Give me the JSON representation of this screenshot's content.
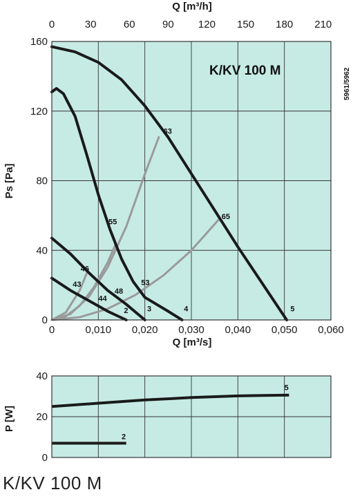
{
  "caption": "K/KV 100 M",
  "code": "5961/5962",
  "chart_data": [
    {
      "type": "line",
      "title": "K/KV 100 M",
      "xlabel": "Q [m³/s]",
      "x2label": "Q [m³/h]",
      "ylabel": "Ps [Pa]",
      "xlim": [
        0,
        0.06
      ],
      "x2lim": [
        0,
        216
      ],
      "ylim": [
        0,
        160
      ],
      "xticks": [
        "0",
        "0,010",
        "0,020",
        "0,030",
        "0,040",
        "0,050",
        "0,060"
      ],
      "x2ticks": [
        "0",
        "30",
        "60",
        "90",
        "120",
        "150",
        "180",
        "210"
      ],
      "yticks": [
        "0",
        "40",
        "80",
        "120",
        "160"
      ],
      "grid": true,
      "fan_curves": [
        {
          "name": "5",
          "label_at": [
            0.0513,
            5
          ],
          "points": [
            [
              0,
              157
            ],
            [
              0.005,
              154
            ],
            [
              0.01,
              148
            ],
            [
              0.015,
              138
            ],
            [
              0.02,
              123
            ],
            [
              0.025,
              105
            ],
            [
              0.03,
              84
            ],
            [
              0.035,
              63
            ],
            [
              0.04,
              42
            ],
            [
              0.045,
              22
            ],
            [
              0.0505,
              0
            ]
          ]
        },
        {
          "name": "4",
          "label_at": [
            0.0284,
            5
          ],
          "points": [
            [
              0,
              131
            ],
            [
              0.001,
              133
            ],
            [
              0.0025,
              130
            ],
            [
              0.005,
              117
            ],
            [
              0.0075,
              95
            ],
            [
              0.01,
              72
            ],
            [
              0.0125,
              52
            ],
            [
              0.015,
              35
            ],
            [
              0.0175,
              22
            ],
            [
              0.02,
              13
            ],
            [
              0.025,
              5
            ],
            [
              0.028,
              0
            ]
          ]
        },
        {
          "name": "3",
          "label_at": [
            0.0205,
            5
          ],
          "points": [
            [
              0,
              47
            ],
            [
              0.004,
              38
            ],
            [
              0.008,
              27
            ],
            [
              0.012,
              17
            ],
            [
              0.016,
              9
            ],
            [
              0.02,
              0
            ]
          ]
        },
        {
          "name": "2",
          "label_at": [
            0.0155,
            4
          ],
          "points": [
            [
              0,
              24
            ],
            [
              0.004,
              17
            ],
            [
              0.008,
              11
            ],
            [
              0.012,
              5
            ],
            [
              0.016,
              0
            ]
          ]
        }
      ],
      "system_curves": [
        {
          "name": "63",
          "label_at": [
            0.024,
            107
          ],
          "points": [
            [
              0,
              0
            ],
            [
              0.004,
              3.4
            ],
            [
              0.008,
              13.4
            ],
            [
              0.012,
              30.2
            ],
            [
              0.016,
              53.6
            ],
            [
              0.02,
              83.8
            ],
            [
              0.023,
              105
            ]
          ]
        },
        {
          "name": "65",
          "label_at": [
            0.0365,
            58
          ],
          "points": [
            [
              0,
              0
            ],
            [
              0.006,
              1.6
            ],
            [
              0.012,
              6.4
            ],
            [
              0.018,
              14.4
            ],
            [
              0.024,
              25.6
            ],
            [
              0.03,
              40
            ],
            [
              0.036,
              58
            ]
          ]
        },
        {
          "name": "55",
          "label_at": [
            0.0122,
            55
          ],
          "points": [
            [
              0,
              0
            ],
            [
              0.003,
              2.1
            ],
            [
              0.006,
              8.2
            ],
            [
              0.009,
              18.6
            ],
            [
              0.012,
              33
            ],
            [
              0.0138,
              44
            ]
          ]
        },
        {
          "name": "46",
          "label_at": [
            0.0062,
            28
          ],
          "points": [
            [
              0,
              0
            ],
            [
              0.003,
              4.3
            ],
            [
              0.006,
              17
            ],
            [
              0.0075,
              26.8
            ]
          ]
        }
      ],
      "operating_labels": [
        {
          "name": "53",
          "label_at": [
            0.0192,
            20
          ]
        },
        {
          "name": "48",
          "label_at": [
            0.0135,
            15
          ]
        },
        {
          "name": "44",
          "label_at": [
            0.01,
            11
          ]
        },
        {
          "name": "43",
          "label_at": [
            0.0045,
            19
          ]
        }
      ]
    },
    {
      "type": "line",
      "xlabel": "",
      "ylabel": "P [W]",
      "xlim": [
        0,
        0.06
      ],
      "ylim": [
        0,
        40
      ],
      "yticks": [
        "0",
        "20",
        "40"
      ],
      "grid": true,
      "series": [
        {
          "name": "5",
          "label_at": [
            0.05,
            33
          ],
          "points": [
            [
              0,
              25
            ],
            [
              0.01,
              26.6
            ],
            [
              0.02,
              28.2
            ],
            [
              0.03,
              29.4
            ],
            [
              0.04,
              30.2
            ],
            [
              0.051,
              30.6
            ]
          ]
        },
        {
          "name": "2",
          "label_at": [
            0.015,
            9
          ],
          "points": [
            [
              0,
              7
            ],
            [
              0.016,
              7
            ]
          ]
        }
      ]
    }
  ]
}
